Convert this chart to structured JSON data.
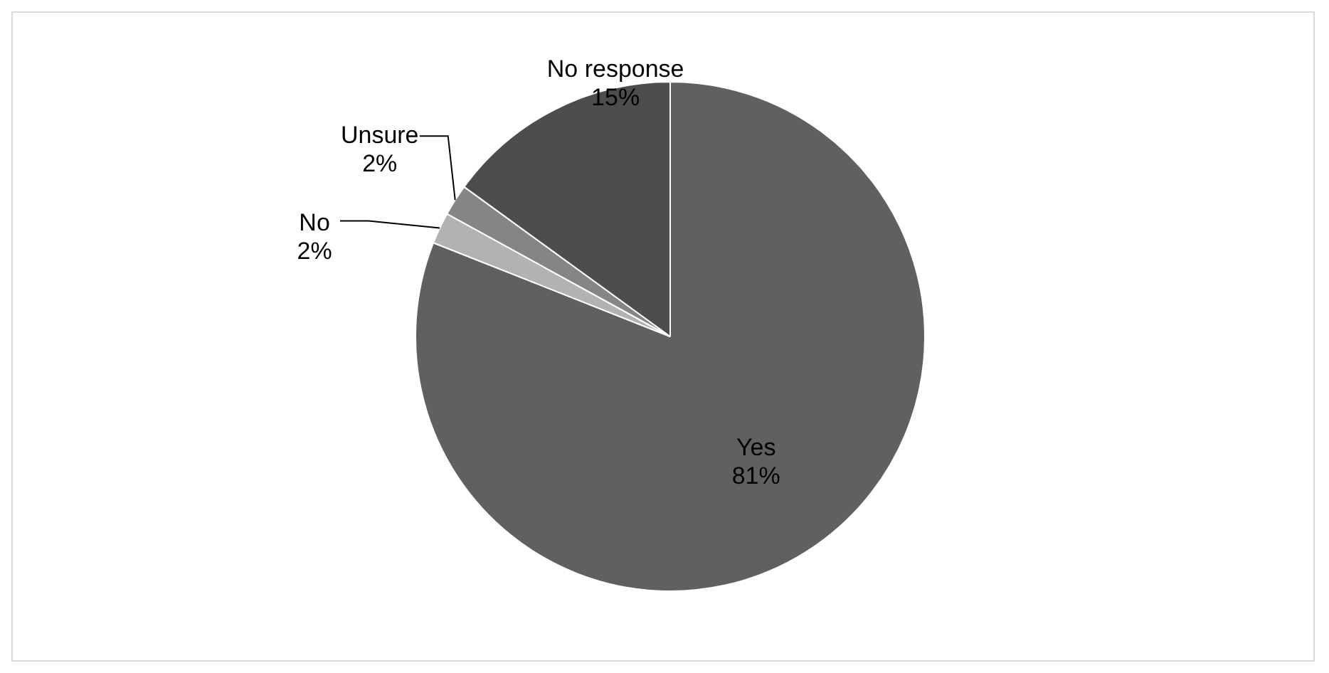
{
  "chart_data": {
    "type": "pie",
    "categories": [
      "Yes",
      "No",
      "Unsure",
      "No response"
    ],
    "values": [
      81,
      2,
      2,
      15
    ],
    "colors": [
      "#606060",
      "#b2b2b2",
      "#858585",
      "#4d4d4d"
    ],
    "value_labels": [
      "81%",
      "2%",
      "2%",
      "15%"
    ],
    "legend": false
  }
}
